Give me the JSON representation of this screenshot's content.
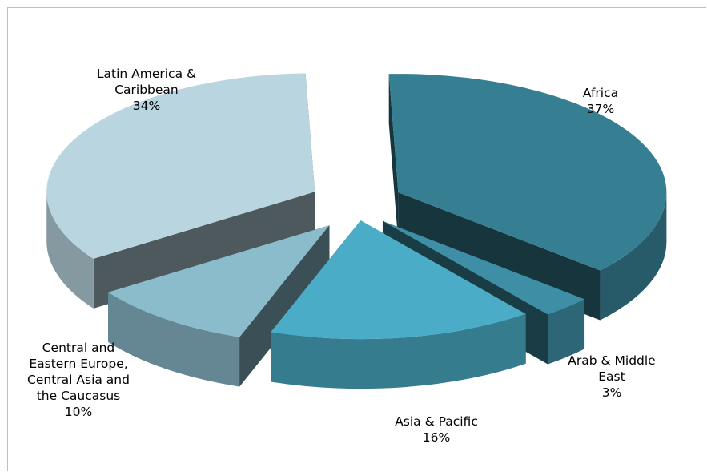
{
  "chart_data": {
    "type": "pie",
    "title": "",
    "categories": [
      "Africa",
      "Arab & Middle East",
      "Asia & Pacific",
      "Central and Eastern Europe, Central Asia and the Caucasus",
      "Latin America & Caribbean"
    ],
    "values": [
      37,
      3,
      16,
      10,
      34
    ],
    "labels": [
      {
        "text": "Africa\n37%"
      },
      {
        "text": "Arab & Middle\nEast\n3%"
      },
      {
        "text": "Asia & Pacific\n16%"
      },
      {
        "text": "Central and\nEastern Europe,\nCentral Asia and\nthe Caucasus\n10%"
      },
      {
        "text": "Latin America &\nCaribbean\n34%"
      }
    ],
    "colors": [
      "#367f92",
      "#3e8fa5",
      "#4aacc6",
      "#8bbccc",
      "#b9d5df"
    ],
    "style": "3D exploded pie",
    "legend": "none (data labels)"
  }
}
